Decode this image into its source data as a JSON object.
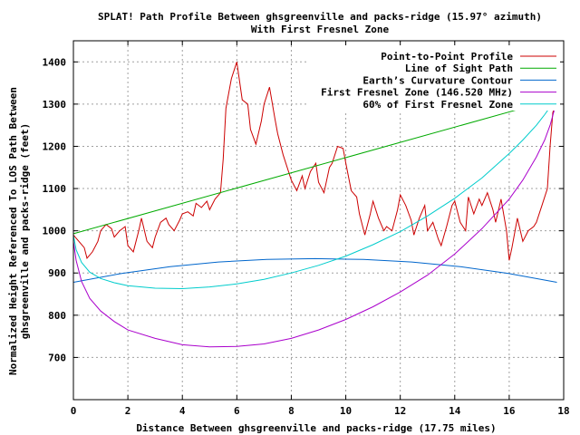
{
  "chart_data": {
    "type": "line",
    "title": "SPLAT! Path Profile Between ghsgreenville and packs-ridge (15.97° azimuth)",
    "subtitle": "With First Fresnel Zone",
    "xlabel": "Distance Between ghsgreenville and packs-ridge (17.75 miles)",
    "ylabel_line1": "Normalized Height Referenced To LOS Path Between",
    "ylabel_line2": "ghsgreenville and packs-ridge (feet)",
    "xlim": [
      0,
      18
    ],
    "ylim": [
      600,
      1450
    ],
    "xticks": [
      0,
      2,
      4,
      6,
      8,
      10,
      12,
      14,
      16,
      18
    ],
    "yticks": [
      700,
      800,
      900,
      1000,
      1100,
      1200,
      1300,
      1400
    ],
    "grid": true,
    "legend_position": "top-right",
    "series": [
      {
        "name": "Point-to-Point Profile",
        "color": "#cc0000",
        "x": [
          0,
          0.2,
          0.4,
          0.5,
          0.7,
          0.9,
          1.0,
          1.2,
          1.4,
          1.5,
          1.7,
          1.9,
          2.0,
          2.2,
          2.4,
          2.5,
          2.7,
          2.9,
          3.0,
          3.2,
          3.4,
          3.5,
          3.7,
          3.9,
          4.0,
          4.2,
          4.4,
          4.5,
          4.7,
          4.9,
          5.0,
          5.2,
          5.4,
          5.5,
          5.6,
          5.8,
          6.0,
          6.2,
          6.4,
          6.5,
          6.7,
          6.9,
          7.0,
          7.2,
          7.4,
          7.5,
          7.7,
          7.9,
          8.0,
          8.2,
          8.4,
          8.5,
          8.7,
          8.9,
          9.0,
          9.2,
          9.4,
          9.5,
          9.7,
          9.9,
          10.0,
          10.2,
          10.4,
          10.5,
          10.7,
          10.9,
          11.0,
          11.2,
          11.4,
          11.5,
          11.7,
          11.9,
          12.0,
          12.2,
          12.4,
          12.5,
          12.7,
          12.9,
          13.0,
          13.2,
          13.4,
          13.5,
          13.7,
          13.9,
          14.0,
          14.2,
          14.4,
          14.5,
          14.7,
          14.9,
          15.0,
          15.2,
          15.4,
          15.5,
          15.7,
          15.9,
          16.0,
          16.1,
          16.3,
          16.5,
          16.7,
          16.9,
          17.0,
          17.2,
          17.4,
          17.5,
          17.6,
          17.75
        ],
        "y": [
          990,
          975,
          960,
          935,
          950,
          975,
          1000,
          1015,
          1005,
          985,
          1000,
          1010,
          965,
          950,
          1000,
          1030,
          975,
          960,
          985,
          1020,
          1030,
          1015,
          1000,
          1025,
          1040,
          1045,
          1035,
          1065,
          1055,
          1070,
          1050,
          1075,
          1090,
          1170,
          1290,
          1360,
          1400,
          1310,
          1300,
          1240,
          1205,
          1260,
          1300,
          1340,
          1265,
          1230,
          1180,
          1140,
          1120,
          1095,
          1130,
          1100,
          1140,
          1160,
          1115,
          1090,
          1150,
          1160,
          1200,
          1195,
          1160,
          1095,
          1080,
          1040,
          990,
          1040,
          1070,
          1030,
          1000,
          1010,
          1000,
          1050,
          1085,
          1060,
          1025,
          990,
          1030,
          1060,
          1000,
          1020,
          980,
          965,
          1010,
          1060,
          1070,
          1020,
          1000,
          1080,
          1040,
          1075,
          1060,
          1090,
          1050,
          1020,
          1075,
          1000,
          930,
          960,
          1030,
          975,
          1000,
          1010,
          1020,
          1060,
          1100,
          1200,
          1280,
          1310
        ]
      },
      {
        "name": "Line of Sight Path",
        "color": "#00aa00",
        "x": [
          0,
          17.75
        ],
        "y": [
          993,
          1313
        ]
      },
      {
        "name": "Earth’s Curvature Contour",
        "color": "#0066cc",
        "x": [
          0,
          1.775,
          3.55,
          5.325,
          7.1,
          8.875,
          10.65,
          12.425,
          14.2,
          15.975,
          17.75
        ],
        "y": [
          878,
          899,
          915,
          926,
          932,
          934,
          932,
          926,
          915,
          899,
          878
        ]
      },
      {
        "name": "First Fresnel Zone (146.520 MHz)",
        "color": "#aa00cc",
        "x": [
          0,
          0.1,
          0.3,
          0.6,
          1.0,
          1.5,
          2.0,
          3.0,
          4.0,
          5.0,
          6.0,
          7.0,
          8.0,
          9.0,
          10.0,
          11.0,
          12.0,
          13.0,
          14.0,
          15.0,
          16.0,
          16.5,
          17.0,
          17.3,
          17.5,
          17.65,
          17.75
        ],
        "y": [
          975,
          930,
          880,
          840,
          810,
          785,
          765,
          745,
          730,
          725,
          726,
          732,
          745,
          765,
          790,
          820,
          855,
          895,
          945,
          1005,
          1075,
          1120,
          1175,
          1215,
          1250,
          1285,
          1310
        ]
      },
      {
        "name": "60% of First Fresnel Zone",
        "color": "#00cccc",
        "x": [
          0,
          0.1,
          0.3,
          0.6,
          1.0,
          1.5,
          2.0,
          3.0,
          4.0,
          5.0,
          6.0,
          7.0,
          8.0,
          9.0,
          10.0,
          11.0,
          12.0,
          13.0,
          14.0,
          15.0,
          16.0,
          16.5,
          17.0,
          17.3,
          17.5,
          17.65,
          17.75
        ],
        "y": [
          990,
          955,
          925,
          902,
          887,
          877,
          870,
          864,
          863,
          867,
          874,
          885,
          900,
          918,
          940,
          967,
          998,
          1035,
          1077,
          1125,
          1183,
          1215,
          1250,
          1275,
          1293,
          1305,
          1313
        ]
      }
    ]
  }
}
